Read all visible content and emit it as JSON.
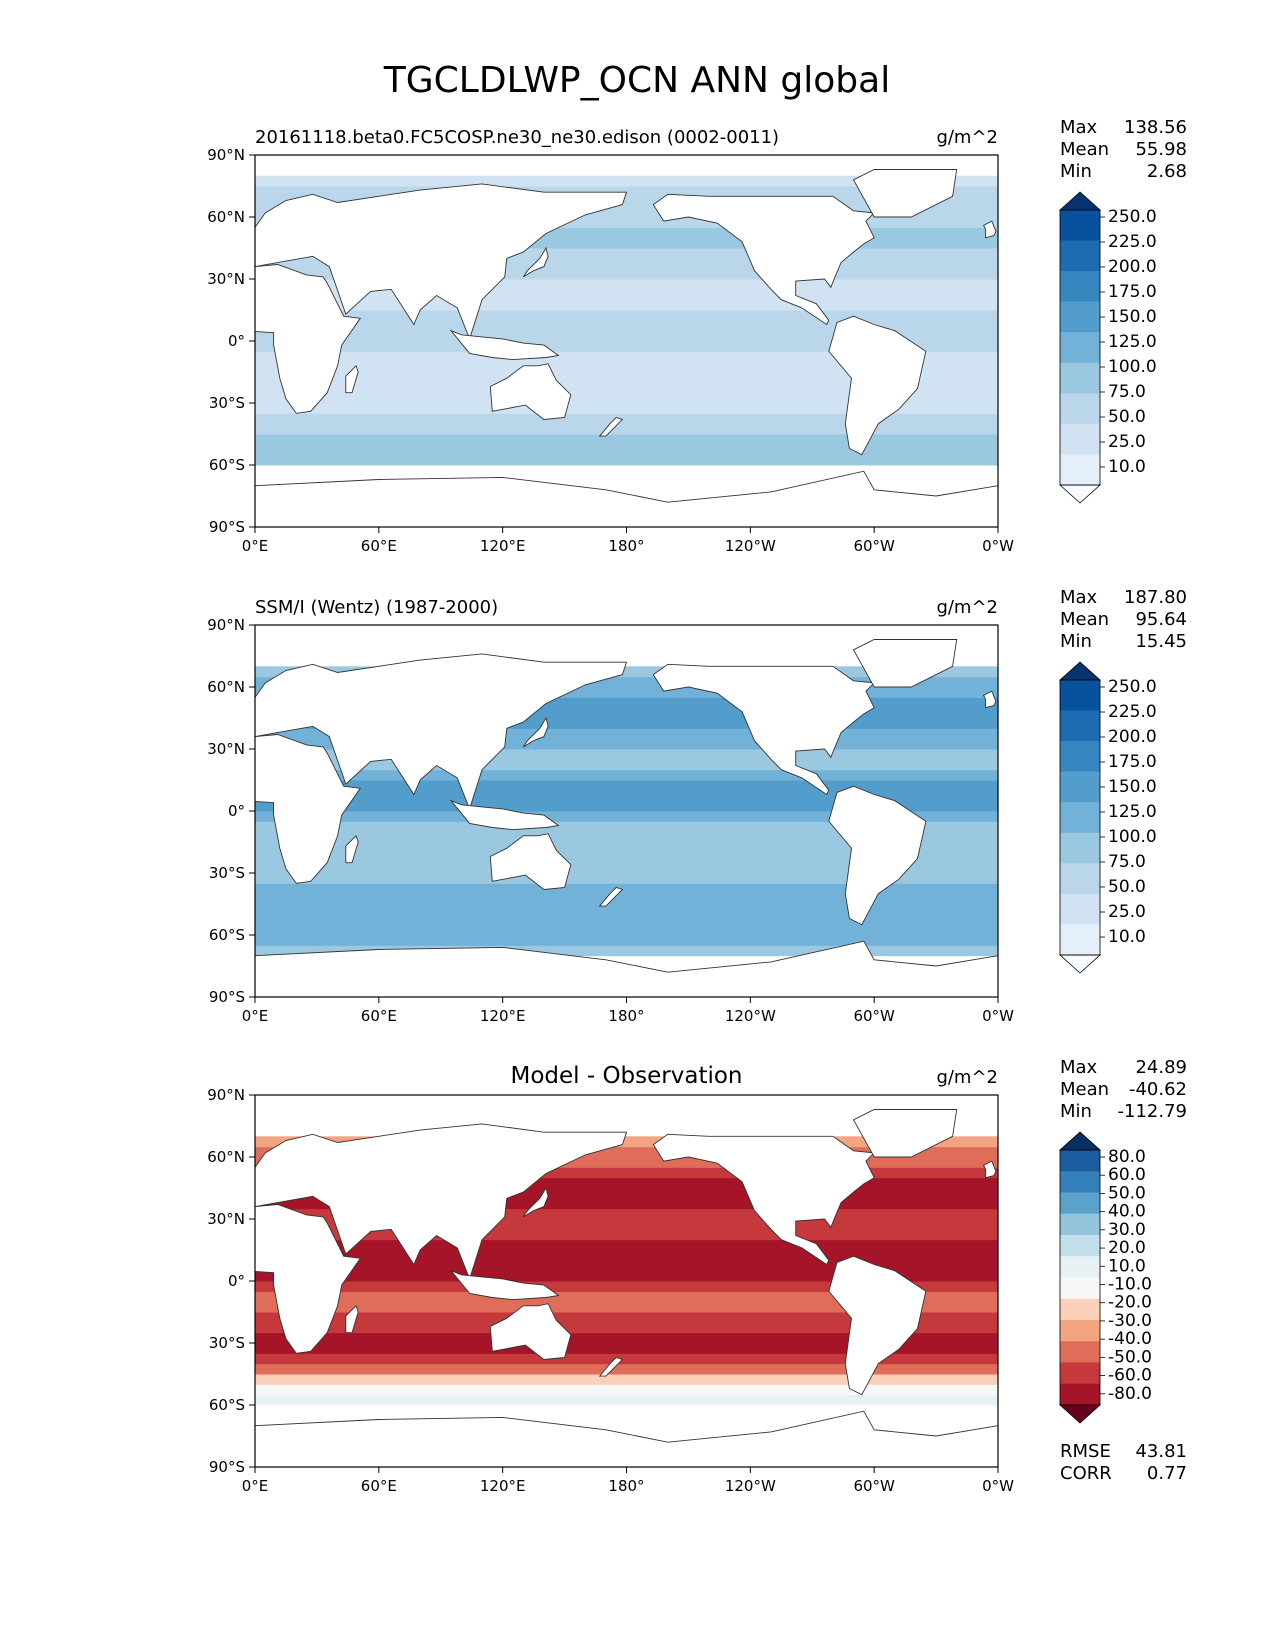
{
  "figure_title": "TGCLDLWP_OCN ANN global",
  "x_ticks": [
    "0°E",
    "60°E",
    "120°E",
    "180°",
    "120°W",
    "60°W",
    "0°W"
  ],
  "y_ticks": [
    "90°N",
    "60°N",
    "30°N",
    "0°",
    "30°S",
    "60°S",
    "90°S"
  ],
  "colors": {
    "blues": [
      "#f7fbff",
      "#e4eff9",
      "#d1e3f3",
      "#bad6eb",
      "#9ac8e0",
      "#73b2d8",
      "#529dcc",
      "#3585bf",
      "#1d6cb1",
      "#08519c",
      "#083370"
    ],
    "diff": [
      "#67001f",
      "#a51429",
      "#c5383b",
      "#df6d5a",
      "#f3a481",
      "#fbd0b9",
      "#f7f7f7",
      "#e8f1f6",
      "#c4dfec",
      "#93c5dd",
      "#5ba2cb",
      "#3480b9",
      "#1b5b9f",
      "#053061"
    ],
    "land": "#ffffff",
    "coast": "#333333"
  },
  "chart_data": [
    {
      "type": "heatmap",
      "panel": "model",
      "title": "20161118.beta0.FC5COSP.ne30_ne30.edison (0002-0011)",
      "units": "g/m^2",
      "stats": [
        {
          "label": "Max",
          "value": "138.56"
        },
        {
          "label": "Mean",
          "value": "55.98"
        },
        {
          "label": "Min",
          "value": "2.68"
        }
      ],
      "colorbar_levels": [
        "250.0",
        "225.0",
        "200.0",
        "175.0",
        "150.0",
        "125.0",
        "100.0",
        "75.0",
        "50.0",
        "25.0",
        "10.0"
      ],
      "xlim": [
        0,
        360
      ],
      "ylim": [
        -90,
        90
      ],
      "zonal_profile": {
        "lat": [
          -60,
          -50,
          -40,
          -30,
          -20,
          -10,
          0,
          10,
          20,
          30,
          40,
          50,
          60,
          70,
          80
        ],
        "value": [
          85,
          80,
          65,
          45,
          35,
          40,
          60,
          55,
          40,
          50,
          70,
          80,
          70,
          55,
          40
        ]
      }
    },
    {
      "type": "heatmap",
      "panel": "observation",
      "title": "SSM/I (Wentz) (1987-2000)",
      "units": "g/m^2",
      "stats": [
        {
          "label": "Max",
          "value": "187.80"
        },
        {
          "label": "Mean",
          "value": "95.64"
        },
        {
          "label": "Min",
          "value": "15.45"
        }
      ],
      "colorbar_levels": [
        "250.0",
        "225.0",
        "200.0",
        "175.0",
        "150.0",
        "125.0",
        "100.0",
        "75.0",
        "50.0",
        "25.0",
        "10.0"
      ],
      "xlim": [
        0,
        360
      ],
      "ylim": [
        -90,
        90
      ],
      "zonal_profile": {
        "lat": [
          -70,
          -60,
          -50,
          -40,
          -30,
          -20,
          -10,
          0,
          10,
          20,
          30,
          40,
          50,
          60,
          70
        ],
        "value": [
          90,
          110,
          120,
          115,
          95,
          80,
          90,
          125,
          150,
          100,
          100,
          130,
          140,
          110,
          90
        ]
      }
    },
    {
      "type": "heatmap",
      "panel": "difference",
      "title": "Model - Observation",
      "units": "g/m^2",
      "stats": [
        {
          "label": "Max",
          "value": "24.89"
        },
        {
          "label": "Mean",
          "value": "-40.62"
        },
        {
          "label": "Min",
          "value": "-112.79"
        }
      ],
      "extra_stats": [
        {
          "label": "RMSE",
          "value": "43.81"
        },
        {
          "label": "CORR",
          "value": "0.77"
        }
      ],
      "colorbar_levels": [
        "80.0",
        "60.0",
        "50.0",
        "40.0",
        "30.0",
        "20.0",
        "10.0",
        "-10.0",
        "-20.0",
        "-30.0",
        "-40.0",
        "-50.0",
        "-60.0",
        "-80.0"
      ],
      "xlim": [
        0,
        360
      ],
      "ylim": [
        -90,
        90
      ],
      "zonal_profile": {
        "lat": [
          -60,
          -50,
          -40,
          -30,
          -20,
          -10,
          0,
          10,
          20,
          30,
          40,
          50,
          60,
          70
        ],
        "value": [
          -5,
          -20,
          -50,
          -65,
          -55,
          -45,
          -60,
          -80,
          -55,
          -55,
          -65,
          -60,
          -45,
          -35
        ]
      }
    }
  ]
}
